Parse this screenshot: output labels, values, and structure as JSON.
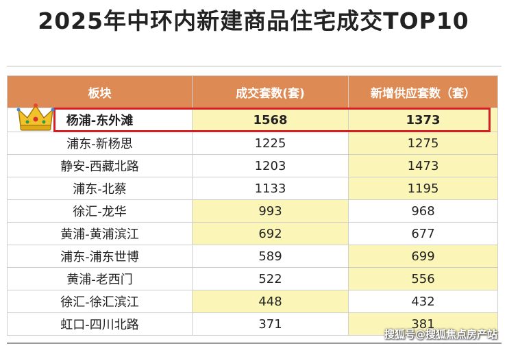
{
  "title": "2025年中环内新建商品住宅成交TOP10",
  "table": {
    "headers": [
      "板块",
      "成交套数(套)",
      "新增供应套数（套）"
    ],
    "rows": [
      {
        "area": "杨浦-东外滩",
        "deals": "1568",
        "supply": "1373"
      },
      {
        "area": "浦东-新杨思",
        "deals": "1225",
        "supply": "1275"
      },
      {
        "area": "静安-西藏北路",
        "deals": "1203",
        "supply": "1473"
      },
      {
        "area": "浦东-北蔡",
        "deals": "1133",
        "supply": "1195"
      },
      {
        "area": "徐汇-龙华",
        "deals": "993",
        "supply": "968"
      },
      {
        "area": "黄浦-黄浦滨江",
        "deals": "692",
        "supply": "677"
      },
      {
        "area": "浦东-浦东世博",
        "deals": "589",
        "supply": "699"
      },
      {
        "area": "黄浦-老西门",
        "deals": "522",
        "supply": "556"
      },
      {
        "area": "徐汇-徐汇滨江",
        "deals": "448",
        "supply": "432"
      },
      {
        "area": "虹口-四川北路",
        "deals": "371",
        "supply": "381"
      }
    ]
  },
  "watermark": "搜狐号@搜狐焦点房产站",
  "colors": {
    "header_bg": "#dd8a55",
    "highlight_bg": "#fbf6b8",
    "top_box": "#d41e24"
  },
  "icons": {
    "crown": "crown-icon"
  }
}
